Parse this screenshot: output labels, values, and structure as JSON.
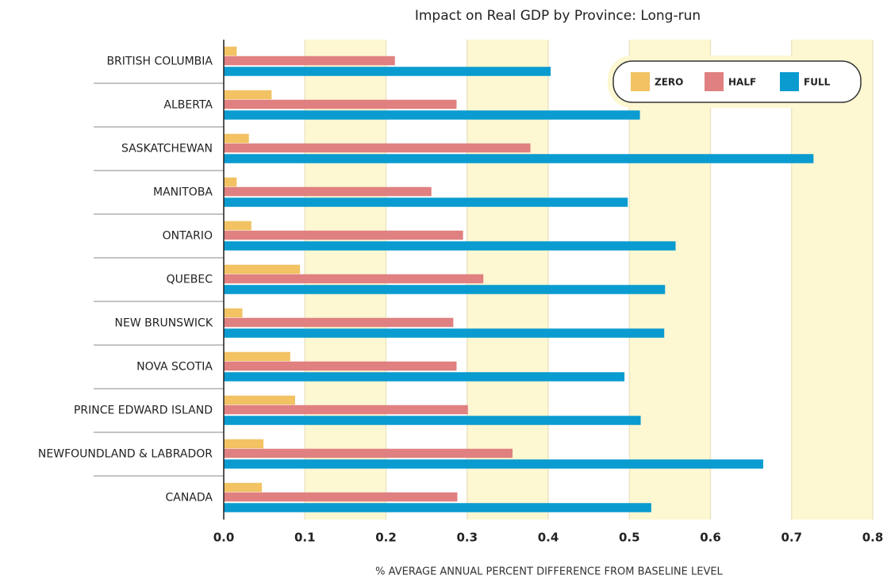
{
  "chart_data": {
    "type": "bar",
    "orientation": "horizontal",
    "title": "Impact on Real GDP by Province: Long-run",
    "x_label": "% AVERAGE ANNUAL PERCENT DIFFERENCE FROM BASELINE LEVEL",
    "categories": [
      "BRITISH COLUMBIA",
      "ALBERTA",
      "SASKATCHEWAN",
      "MANITOBA",
      "ONTARIO",
      "QUEBEC",
      "NEW BRUNSWICK",
      "NOVA SCOTIA",
      "PRINCE EDWARD ISLAND",
      "NEWFOUNDLAND & LABRADOR",
      "CANADA"
    ],
    "series": [
      {
        "name": "ZERO",
        "color": "#f2c263",
        "values": [
          0.016,
          0.059,
          0.031,
          0.016,
          0.034,
          0.094,
          0.023,
          0.082,
          0.088,
          0.049,
          0.047
        ]
      },
      {
        "name": "HALF",
        "color": "#e08080",
        "values": [
          0.211,
          0.287,
          0.378,
          0.256,
          0.295,
          0.32,
          0.283,
          0.287,
          0.301,
          0.356,
          0.288
        ]
      },
      {
        "name": "FULL",
        "color": "#0a9bd0",
        "values": [
          0.403,
          0.513,
          0.727,
          0.498,
          0.557,
          0.544,
          0.543,
          0.494,
          0.514,
          0.665,
          0.527
        ]
      }
    ],
    "xlim": [
      0,
      0.8
    ],
    "xticks": [
      {
        "value": 0,
        "label": "0.0"
      },
      0.1,
      0.2,
      0.3,
      0.4,
      0.5,
      0.6,
      0.7,
      0.8
    ],
    "grid": true,
    "legend": "upper right"
  }
}
